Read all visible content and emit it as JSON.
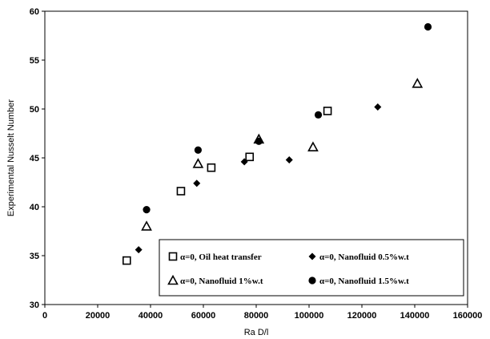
{
  "chart_data": {
    "type": "scatter",
    "xlabel": "Ra D/l",
    "ylabel": "Experimental  Nusselt Number",
    "xlim": [
      0,
      160000
    ],
    "ylim": [
      30,
      60
    ],
    "xticks": [
      0,
      20000,
      40000,
      60000,
      80000,
      100000,
      120000,
      140000,
      160000
    ],
    "yticks": [
      30,
      35,
      40,
      45,
      50,
      55,
      60
    ],
    "grid": false,
    "legend_position": "bottom-right",
    "series": [
      {
        "name": "α=0, Oil heat transfer",
        "marker": "open-square",
        "points": [
          [
            31000,
            34.5
          ],
          [
            51500,
            41.6
          ],
          [
            63000,
            44.0
          ],
          [
            77500,
            45.1
          ],
          [
            107000,
            49.8
          ]
        ]
      },
      {
        "name": "α=0, Nanofluid 0.5%w.t",
        "marker": "filled-diamond",
        "points": [
          [
            35500,
            35.6
          ],
          [
            57500,
            42.4
          ],
          [
            75500,
            44.6
          ],
          [
            92500,
            44.8
          ],
          [
            126000,
            50.2
          ]
        ]
      },
      {
        "name": "α=0, Nanofluid 1%w.t",
        "marker": "open-triangle",
        "points": [
          [
            38500,
            38.0
          ],
          [
            58000,
            44.4
          ],
          [
            81000,
            46.9
          ],
          [
            101500,
            46.1
          ],
          [
            141000,
            52.6
          ]
        ]
      },
      {
        "name": "α=0, Nanofluid 1.5%w.t",
        "marker": "filled-circle",
        "points": [
          [
            38500,
            39.7
          ],
          [
            58000,
            45.8
          ],
          [
            81000,
            46.7
          ],
          [
            103500,
            49.4
          ],
          [
            145000,
            58.4
          ]
        ]
      }
    ]
  }
}
